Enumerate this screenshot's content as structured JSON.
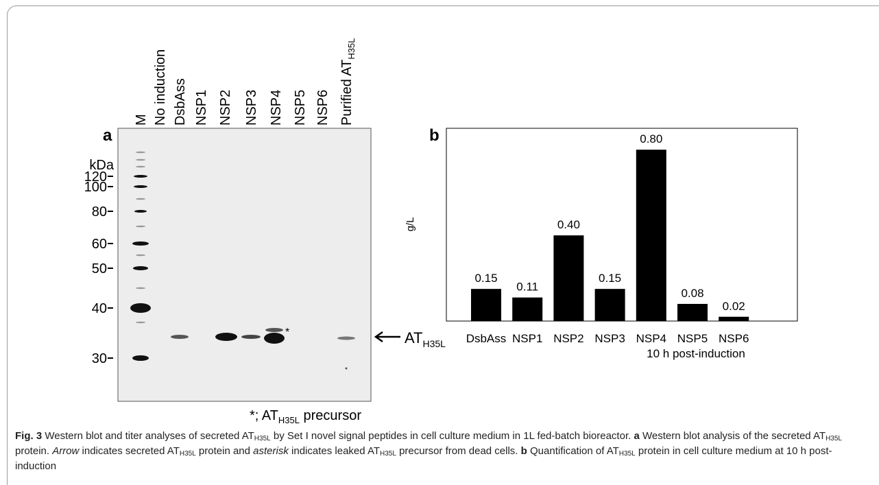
{
  "panel_a": {
    "label": "a",
    "lanes": [
      "M",
      "No induction",
      "DsbAss",
      "NSP1",
      "NSP2",
      "NSP3",
      "NSP4",
      "NSP5",
      "NSP6"
    ],
    "purified_lane": {
      "text": "Purified AT",
      "sub": "H35L"
    },
    "marker_unit": "kDa",
    "markers": [
      120,
      100,
      80,
      60,
      50,
      40,
      30
    ],
    "arrow_label": {
      "text": "AT",
      "sub": "H35L"
    },
    "asterisk": "*",
    "footnote": {
      "prefix": "*; AT",
      "sub": "H35L",
      "suffix": " precursor"
    }
  },
  "chart_data": {
    "type": "bar",
    "label": "b",
    "ylabel": "g/L",
    "xlabel": "10 h post-induction",
    "categories": [
      "DsbAss",
      "NSP1",
      "NSP2",
      "NSP3",
      "NSP4",
      "NSP5",
      "NSP6"
    ],
    "values": [
      0.15,
      0.11,
      0.4,
      0.15,
      0.8,
      0.08,
      0.02
    ],
    "value_labels": [
      "0.15",
      "0.11",
      "0.40",
      "0.15",
      "0.80",
      "0.08",
      "0.02"
    ],
    "color": "#000000",
    "ylim": [
      0,
      0.9
    ]
  },
  "caption": [
    "Fig. 3",
    " Western blot and titer analyses of secreted ",
    "AT",
    "H35L",
    " by Set I novel signal peptides in cell culture medium in 1L fed-batch bioreactor. ",
    "a",
    " Western blot analysis of the secreted ",
    "AT",
    "H35L",
    " protein. ",
    "Arrow",
    " indicates secreted ",
    "AT",
    "H35L",
    " protein and ",
    "asterisk",
    " indicates leaked ",
    "AT",
    "H35L",
    " precursor from dead cells. ",
    "b",
    " Quantification of ",
    "AT",
    "H35L",
    " protein in cell culture medium at 10 h post-induction"
  ]
}
